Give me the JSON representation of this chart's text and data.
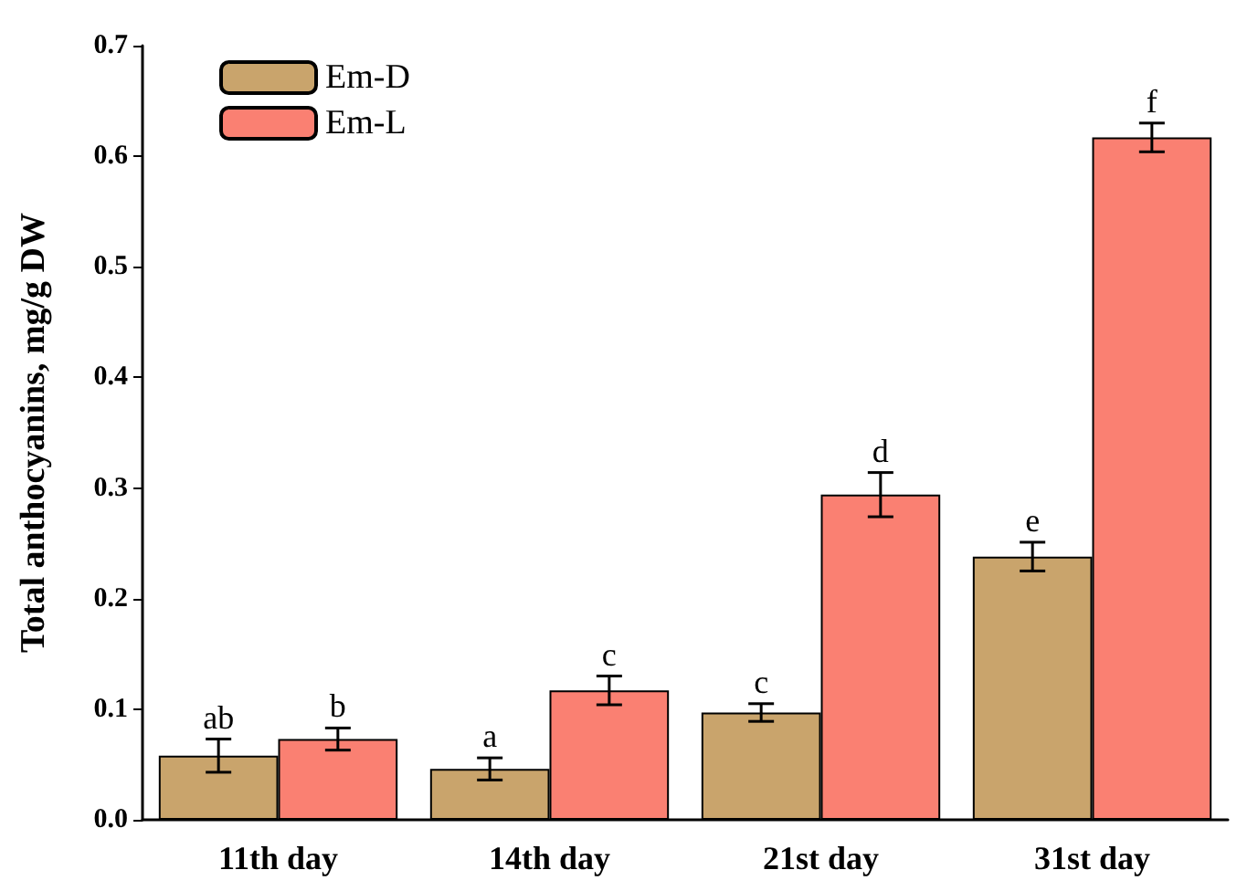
{
  "chart_data": {
    "type": "bar",
    "ylabel": "Total anthocyanins, mg/g DW",
    "categories": [
      "11th day",
      "14th day",
      "21st day",
      "31st day"
    ],
    "series": [
      {
        "name": "Em-D",
        "color": "#c9a46c",
        "values": [
          0.058,
          0.046,
          0.097,
          0.238
        ],
        "errors": [
          0.015,
          0.01,
          0.008,
          0.013
        ]
      },
      {
        "name": "Em-L",
        "color": "#fa8072",
        "values": [
          0.073,
          0.117,
          0.294,
          0.617
        ],
        "errors": [
          0.01,
          0.013,
          0.02,
          0.013
        ]
      }
    ],
    "ylim": [
      0,
      0.7
    ],
    "yticks": [
      {
        "value": 0,
        "label": "0.0"
      },
      0.1,
      0.2,
      0.3,
      0.4,
      0.5,
      0.6,
      0.7
    ],
    "grid": false,
    "legend": "top left",
    "annotations": [
      {
        "text": "ab",
        "x": "11th day",
        "y": 0.058
      },
      {
        "text": "b",
        "x": "11th day",
        "y": 0.073
      },
      {
        "text": "a",
        "x": "14th day",
        "y": 0.046
      },
      {
        "text": "c",
        "x": "14th day",
        "y": 0.117
      },
      {
        "text": "c",
        "x": "21st day",
        "y": 0.097
      },
      {
        "text": "d",
        "x": "21st day",
        "y": 0.294
      },
      {
        "text": "e",
        "x": "31st day",
        "y": 0.238
      },
      {
        "text": "f",
        "x": "31st day",
        "y": 0.617
      }
    ]
  }
}
